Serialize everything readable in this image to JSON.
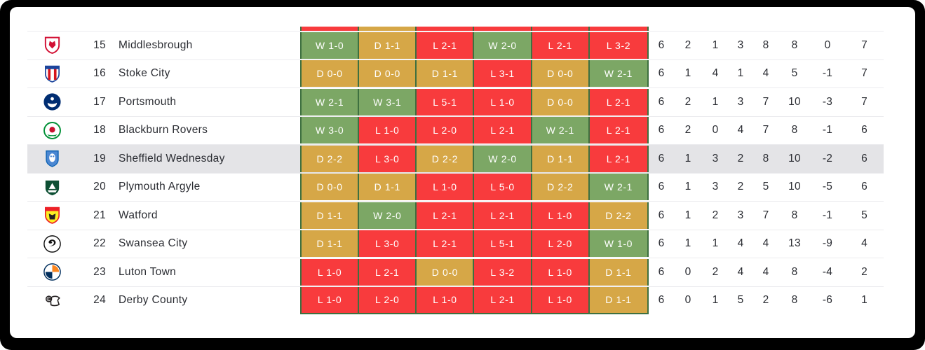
{
  "table": {
    "form_colors": {
      "win": "#7CA765",
      "draw": "#D6A747",
      "loss": "#F83B3D",
      "border": "#3E7040"
    },
    "highlight_color": "#E4E4E7",
    "previous_row_sliver": [
      "loss",
      "draw",
      "loss",
      "loss",
      "loss",
      "loss"
    ],
    "rows": [
      {
        "position": "15",
        "team": "Middlesbrough",
        "badge": "middlesbrough-crest-icon",
        "highlighted": false,
        "form": [
          {
            "result": "W 1-0",
            "outcome": "win"
          },
          {
            "result": "D 1-1",
            "outcome": "draw"
          },
          {
            "result": "L 2-1",
            "outcome": "loss"
          },
          {
            "result": "W 2-0",
            "outcome": "win"
          },
          {
            "result": "L 2-1",
            "outcome": "loss"
          },
          {
            "result": "L 3-2",
            "outcome": "loss"
          }
        ],
        "stats": [
          "6",
          "2",
          "1",
          "3",
          "8",
          "8",
          "0",
          "7"
        ]
      },
      {
        "position": "16",
        "team": "Stoke City",
        "badge": "stoke-city-crest-icon",
        "highlighted": false,
        "form": [
          {
            "result": "D 0-0",
            "outcome": "draw"
          },
          {
            "result": "D 0-0",
            "outcome": "draw"
          },
          {
            "result": "D 1-1",
            "outcome": "draw"
          },
          {
            "result": "L 3-1",
            "outcome": "loss"
          },
          {
            "result": "D 0-0",
            "outcome": "draw"
          },
          {
            "result": "W 2-1",
            "outcome": "win"
          }
        ],
        "stats": [
          "6",
          "1",
          "4",
          "1",
          "4",
          "5",
          "-1",
          "7"
        ]
      },
      {
        "position": "17",
        "team": "Portsmouth",
        "badge": "portsmouth-crest-icon",
        "highlighted": false,
        "form": [
          {
            "result": "W 2-1",
            "outcome": "win"
          },
          {
            "result": "W 3-1",
            "outcome": "win"
          },
          {
            "result": "L 5-1",
            "outcome": "loss"
          },
          {
            "result": "L 1-0",
            "outcome": "loss"
          },
          {
            "result": "D 0-0",
            "outcome": "draw"
          },
          {
            "result": "L 2-1",
            "outcome": "loss"
          }
        ],
        "stats": [
          "6",
          "2",
          "1",
          "3",
          "7",
          "10",
          "-3",
          "7"
        ]
      },
      {
        "position": "18",
        "team": "Blackburn Rovers",
        "badge": "blackburn-rovers-crest-icon",
        "highlighted": false,
        "form": [
          {
            "result": "W 3-0",
            "outcome": "win"
          },
          {
            "result": "L 1-0",
            "outcome": "loss"
          },
          {
            "result": "L 2-0",
            "outcome": "loss"
          },
          {
            "result": "L 2-1",
            "outcome": "loss"
          },
          {
            "result": "W 2-1",
            "outcome": "win"
          },
          {
            "result": "L 2-1",
            "outcome": "loss"
          }
        ],
        "stats": [
          "6",
          "2",
          "0",
          "4",
          "7",
          "8",
          "-1",
          "6"
        ]
      },
      {
        "position": "19",
        "team": "Sheffield Wednesday",
        "badge": "sheffield-wednesday-crest-icon",
        "highlighted": true,
        "form": [
          {
            "result": "D 2-2",
            "outcome": "draw"
          },
          {
            "result": "L 3-0",
            "outcome": "loss"
          },
          {
            "result": "D 2-2",
            "outcome": "draw"
          },
          {
            "result": "W 2-0",
            "outcome": "win"
          },
          {
            "result": "D 1-1",
            "outcome": "draw"
          },
          {
            "result": "L 2-1",
            "outcome": "loss"
          }
        ],
        "stats": [
          "6",
          "1",
          "3",
          "2",
          "8",
          "10",
          "-2",
          "6"
        ]
      },
      {
        "position": "20",
        "team": "Plymouth Argyle",
        "badge": "plymouth-argyle-crest-icon",
        "highlighted": false,
        "form": [
          {
            "result": "D 0-0",
            "outcome": "draw"
          },
          {
            "result": "D 1-1",
            "outcome": "draw"
          },
          {
            "result": "L 1-0",
            "outcome": "loss"
          },
          {
            "result": "L 5-0",
            "outcome": "loss"
          },
          {
            "result": "D 2-2",
            "outcome": "draw"
          },
          {
            "result": "W 2-1",
            "outcome": "win"
          }
        ],
        "stats": [
          "6",
          "1",
          "3",
          "2",
          "5",
          "10",
          "-5",
          "6"
        ]
      },
      {
        "position": "21",
        "team": "Watford",
        "badge": "watford-crest-icon",
        "highlighted": false,
        "form": [
          {
            "result": "D 1-1",
            "outcome": "draw"
          },
          {
            "result": "W 2-0",
            "outcome": "win"
          },
          {
            "result": "L 2-1",
            "outcome": "loss"
          },
          {
            "result": "L 2-1",
            "outcome": "loss"
          },
          {
            "result": "L 1-0",
            "outcome": "loss"
          },
          {
            "result": "D 2-2",
            "outcome": "draw"
          }
        ],
        "stats": [
          "6",
          "1",
          "2",
          "3",
          "7",
          "8",
          "-1",
          "5"
        ]
      },
      {
        "position": "22",
        "team": "Swansea City",
        "badge": "swansea-city-crest-icon",
        "highlighted": false,
        "form": [
          {
            "result": "D 1-1",
            "outcome": "draw"
          },
          {
            "result": "L 3-0",
            "outcome": "loss"
          },
          {
            "result": "L 2-1",
            "outcome": "loss"
          },
          {
            "result": "L 5-1",
            "outcome": "loss"
          },
          {
            "result": "L 2-0",
            "outcome": "loss"
          },
          {
            "result": "W 1-0",
            "outcome": "win"
          }
        ],
        "stats": [
          "6",
          "1",
          "1",
          "4",
          "4",
          "13",
          "-9",
          "4"
        ]
      },
      {
        "position": "23",
        "team": "Luton Town",
        "badge": "luton-town-crest-icon",
        "highlighted": false,
        "form": [
          {
            "result": "L 1-0",
            "outcome": "loss"
          },
          {
            "result": "L 2-1",
            "outcome": "loss"
          },
          {
            "result": "D 0-0",
            "outcome": "draw"
          },
          {
            "result": "L 3-2",
            "outcome": "loss"
          },
          {
            "result": "L 1-0",
            "outcome": "loss"
          },
          {
            "result": "D 1-1",
            "outcome": "draw"
          }
        ],
        "stats": [
          "6",
          "0",
          "2",
          "4",
          "4",
          "8",
          "-4",
          "2"
        ]
      },
      {
        "position": "24",
        "team": "Derby County",
        "badge": "derby-county-crest-icon",
        "highlighted": false,
        "form": [
          {
            "result": "L 1-0",
            "outcome": "loss"
          },
          {
            "result": "L 2-0",
            "outcome": "loss"
          },
          {
            "result": "L 1-0",
            "outcome": "loss"
          },
          {
            "result": "L 2-1",
            "outcome": "loss"
          },
          {
            "result": "L 1-0",
            "outcome": "loss"
          },
          {
            "result": "D 1-1",
            "outcome": "draw"
          }
        ],
        "stats": [
          "6",
          "0",
          "1",
          "5",
          "2",
          "8",
          "-6",
          "1"
        ]
      }
    ]
  }
}
